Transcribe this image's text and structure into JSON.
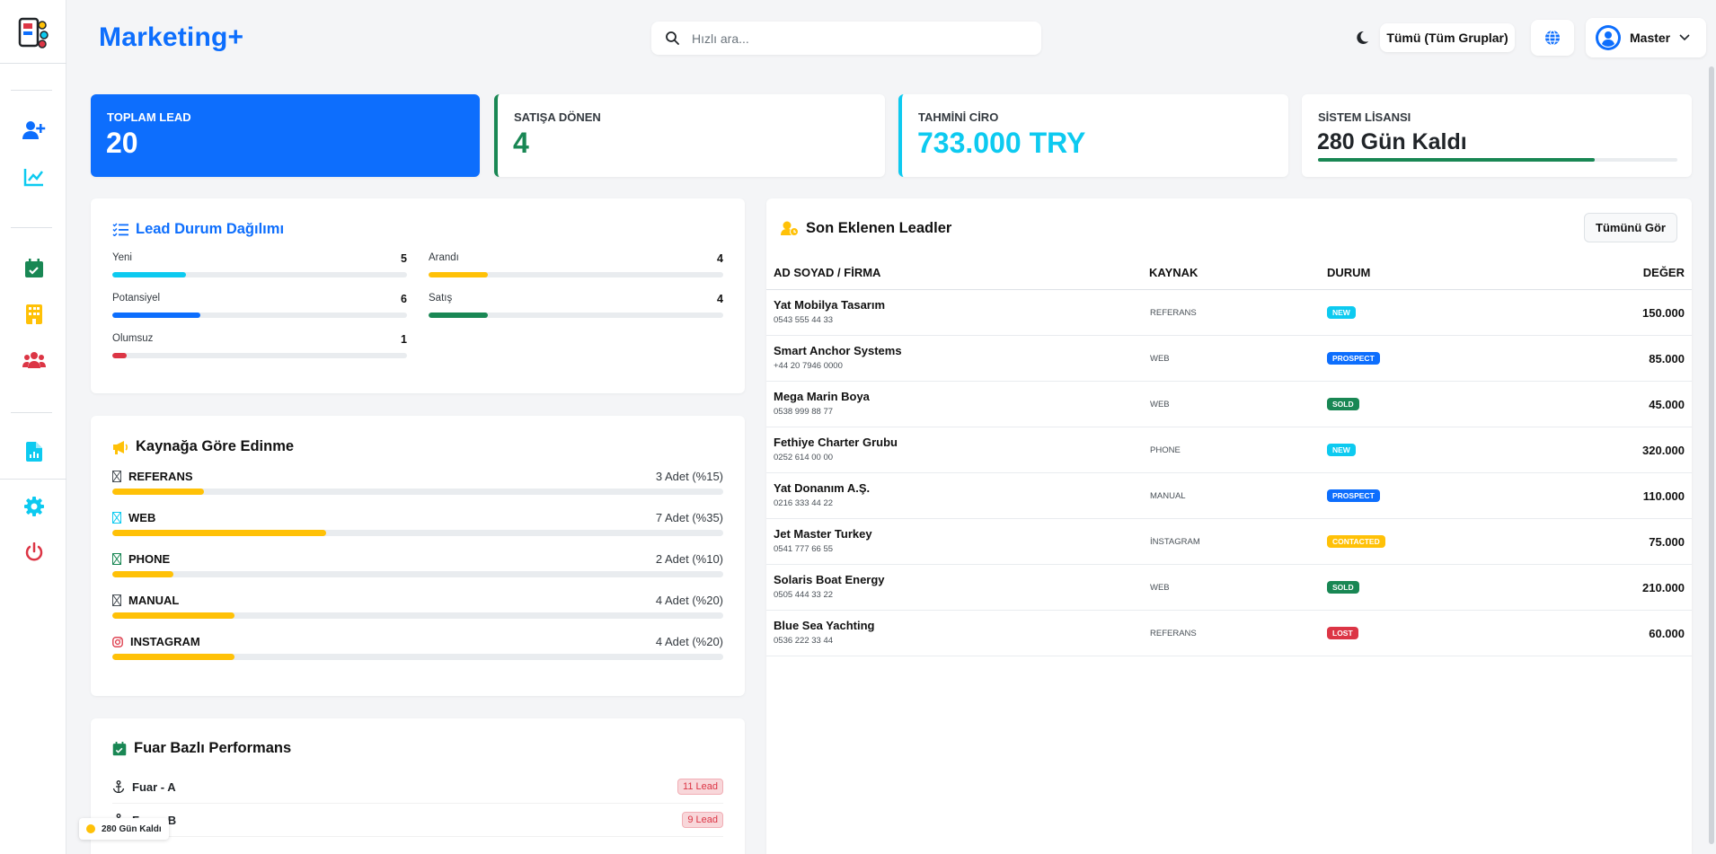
{
  "app": {
    "brand": "Marketing+"
  },
  "search": {
    "placeholder": "Hızlı ara..."
  },
  "topbar": {
    "group_filter": "Tümü (Tüm Gruplar)",
    "user_name": "Master"
  },
  "sidebar": {
    "items": [
      {
        "icon": "user-plus-icon",
        "color": "#0d6efd"
      },
      {
        "icon": "chart-line-icon",
        "color": "#0dcaf0"
      },
      {
        "icon": "calendar-check-icon",
        "color": "#198754"
      },
      {
        "icon": "building-icon",
        "color": "#ffc107"
      },
      {
        "icon": "users-icon",
        "color": "#dc3545"
      },
      {
        "icon": "file-chart-icon",
        "color": "#0dcaf0"
      },
      {
        "icon": "gear-icon",
        "color": "#0dcaf0"
      },
      {
        "icon": "power-icon",
        "color": "#dc3545"
      }
    ]
  },
  "stats": {
    "total_lead": {
      "label": "TOPLAM LEAD",
      "value": "20"
    },
    "converted": {
      "label": "SATIŞA DÖNEN",
      "value": "4"
    },
    "revenue": {
      "label": "TAHMİNİ CİRO",
      "value": "733.000 TRY"
    },
    "license": {
      "label": "SİSTEM LİSANSI",
      "value": "280 Gün Kaldı",
      "progress": 0.77
    }
  },
  "lead_status": {
    "title": "Lead Durum Dağılımı",
    "items": [
      {
        "label": "Yeni",
        "count": "5",
        "fraction": 0.25,
        "color": "#0dcaf0"
      },
      {
        "label": "Arandı",
        "count": "4",
        "fraction": 0.2,
        "color": "#ffc107"
      },
      {
        "label": "Potansiyel",
        "count": "6",
        "fraction": 0.3,
        "color": "#0d6efd"
      },
      {
        "label": "Satış",
        "count": "4",
        "fraction": 0.2,
        "color": "#198754"
      },
      {
        "label": "Olumsuz",
        "count": "1",
        "fraction": 0.05,
        "color": "#dc3545"
      }
    ]
  },
  "sources": {
    "title": "Kaynağa Göre Edinme",
    "items": [
      {
        "name": "REFERANS",
        "count": "3 Adet (%15)",
        "fraction": 0.15,
        "icon": "referral-icon",
        "icon_color": "#495057"
      },
      {
        "name": "WEB",
        "count": "7 Adet (%35)",
        "fraction": 0.35,
        "icon": "web-icon",
        "icon_color": "#0dcaf0"
      },
      {
        "name": "PHONE",
        "count": "2 Adet (%10)",
        "fraction": 0.1,
        "icon": "phone-icon",
        "icon_color": "#198754"
      },
      {
        "name": "MANUAL",
        "count": "4 Adet (%20)",
        "fraction": 0.2,
        "icon": "manual-icon",
        "icon_color": "#495057"
      },
      {
        "name": "INSTAGRAM",
        "count": "4 Adet (%20)",
        "fraction": 0.2,
        "icon": "instagram-icon",
        "icon_color": "#dc3545"
      }
    ],
    "bar_color": "#ffc107"
  },
  "fairs": {
    "title": "Fuar Bazlı Performans",
    "items": [
      {
        "name": "Fuar - A",
        "badge": "11 Lead"
      },
      {
        "name": "Fuar - B",
        "badge": "9 Lead"
      }
    ]
  },
  "recent": {
    "title": "Son Eklenen Leadler",
    "view_all": "Tümünü Gör",
    "headers": [
      "AD SOYAD / FİRMA",
      "KAYNAK",
      "DURUM",
      "DEĞER"
    ],
    "rows": [
      {
        "name": "Yat Mobilya Tasarım",
        "phone": "0543 555 44 33",
        "source": "REFERANS",
        "status": "NEW",
        "status_color": "#0dcaf0",
        "value": "150.000"
      },
      {
        "name": "Smart Anchor Systems",
        "phone": "+44 20 7946 0000",
        "source": "WEB",
        "status": "PROSPECT",
        "status_color": "#0d6efd",
        "value": "85.000"
      },
      {
        "name": "Mega Marin Boya",
        "phone": "0538 999 88 77",
        "source": "WEB",
        "status": "SOLD",
        "status_color": "#198754",
        "value": "45.000"
      },
      {
        "name": "Fethiye Charter Grubu",
        "phone": "0252 614 00 00",
        "source": "PHONE",
        "status": "NEW",
        "status_color": "#0dcaf0",
        "value": "320.000"
      },
      {
        "name": "Yat Donanım A.Ş.",
        "phone": "0216 333 44 22",
        "source": "MANUAL",
        "status": "PROSPECT",
        "status_color": "#0d6efd",
        "value": "110.000"
      },
      {
        "name": "Jet Master Turkey",
        "phone": "0541 777 66 55",
        "source": "İNSTAGRAM",
        "status": "CONTACTED",
        "status_color": "#ffc107",
        "value": "75.000"
      },
      {
        "name": "Solaris Boat Energy",
        "phone": "0505 444 33 22",
        "source": "WEB",
        "status": "SOLD",
        "status_color": "#198754",
        "value": "210.000"
      },
      {
        "name": "Blue Sea Yachting",
        "phone": "0536 222 33 44",
        "source": "REFERANS",
        "status": "LOST",
        "status_color": "#dc3545",
        "value": "60.000"
      }
    ]
  },
  "toast": {
    "text": "280 Gün Kaldı"
  }
}
